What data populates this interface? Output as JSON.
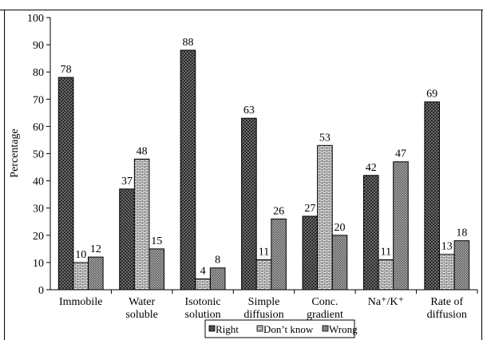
{
  "chart_data": {
    "type": "bar",
    "ylabel": "Percentage",
    "ylim": [
      0,
      100
    ],
    "yticks": [
      "0",
      "10",
      "20",
      "30",
      "40",
      "50",
      "60",
      "70",
      "80",
      "90",
      "100"
    ],
    "categories": [
      [
        "Immobile"
      ],
      [
        "Water",
        "soluble"
      ],
      [
        "Isotonic",
        "solution"
      ],
      [
        "Simple",
        "diffusion"
      ],
      [
        "Conc.",
        "gradient"
      ],
      [
        "Na⁺/K⁺"
      ],
      [
        "Rate of",
        "diffusion"
      ]
    ],
    "series": [
      {
        "name": "Right",
        "values": [
          78,
          37,
          88,
          63,
          27,
          42,
          69
        ],
        "labels": [
          "78",
          "37",
          "88",
          "63",
          "27",
          "42",
          "69"
        ]
      },
      {
        "name": "Don’t know",
        "values": [
          10,
          48,
          4,
          11,
          53,
          11,
          13
        ],
        "labels": [
          "10",
          "48",
          "4",
          "11",
          "53",
          "11",
          "13"
        ]
      },
      {
        "name": "Wrong",
        "values": [
          12,
          15,
          8,
          26,
          20,
          47,
          18
        ],
        "labels": [
          "12",
          "15",
          "8",
          "26",
          "20",
          "47",
          "18"
        ]
      }
    ],
    "legend_position": "bottom",
    "grid": false
  }
}
